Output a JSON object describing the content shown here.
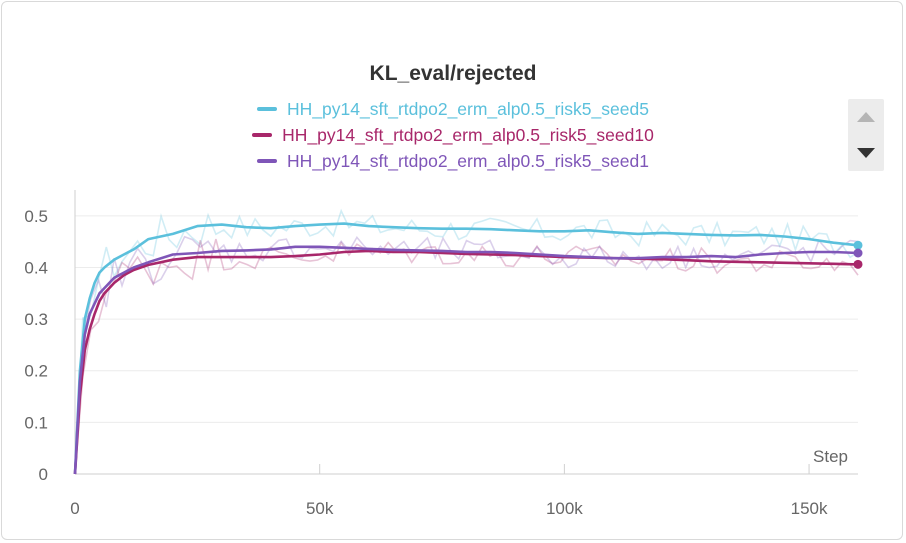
{
  "chart_data": {
    "type": "line",
    "title": "KL_eval/rejected",
    "xlabel": "Step",
    "ylabel": "",
    "xlim": [
      0,
      160000
    ],
    "ylim": [
      0,
      0.55
    ],
    "x_ticks": [
      0,
      50000,
      100000,
      150000
    ],
    "x_tick_labels": [
      "0",
      "50k",
      "100k",
      "150k"
    ],
    "y_ticks": [
      0,
      0.1,
      0.2,
      0.3,
      0.4,
      0.5
    ],
    "y_tick_labels": [
      "0",
      "0.1",
      "0.2",
      "0.3",
      "0.4",
      "0.5"
    ],
    "legend_position": "top-center",
    "grid": true,
    "series": [
      {
        "name": "HH_py14_sft_rtdpo2_erm_alp0.5_risk5_seed5",
        "color": "#5bc0dc",
        "x": [
          0,
          1000,
          2000,
          3000,
          4000,
          5000,
          6000,
          8000,
          10000,
          12000,
          15000,
          20000,
          25000,
          30000,
          35000,
          40000,
          45000,
          50000,
          55000,
          60000,
          65000,
          70000,
          75000,
          80000,
          85000,
          90000,
          95000,
          100000,
          105000,
          110000,
          115000,
          120000,
          125000,
          130000,
          135000,
          140000,
          145000,
          150000,
          155000,
          160000
        ],
        "values": [
          0,
          0.2,
          0.3,
          0.34,
          0.37,
          0.39,
          0.4,
          0.415,
          0.425,
          0.435,
          0.455,
          0.465,
          0.48,
          0.483,
          0.478,
          0.476,
          0.48,
          0.483,
          0.485,
          0.48,
          0.478,
          0.476,
          0.475,
          0.475,
          0.474,
          0.472,
          0.47,
          0.47,
          0.472,
          0.468,
          0.465,
          0.467,
          0.465,
          0.463,
          0.462,
          0.463,
          0.46,
          0.455,
          0.448,
          0.443
        ]
      },
      {
        "name": "HH_py14_sft_rtdpo2_erm_alp0.5_risk5_seed10",
        "color": "#a8276a",
        "x": [
          0,
          1000,
          2000,
          3000,
          4000,
          5000,
          6000,
          8000,
          10000,
          12000,
          15000,
          20000,
          25000,
          30000,
          35000,
          40000,
          45000,
          50000,
          55000,
          60000,
          65000,
          70000,
          75000,
          80000,
          85000,
          90000,
          95000,
          100000,
          105000,
          110000,
          115000,
          120000,
          125000,
          130000,
          135000,
          140000,
          145000,
          150000,
          155000,
          160000
        ],
        "values": [
          0,
          0.15,
          0.24,
          0.28,
          0.31,
          0.335,
          0.35,
          0.37,
          0.385,
          0.395,
          0.405,
          0.415,
          0.42,
          0.42,
          0.42,
          0.42,
          0.422,
          0.425,
          0.43,
          0.432,
          0.43,
          0.43,
          0.428,
          0.426,
          0.425,
          0.424,
          0.422,
          0.42,
          0.419,
          0.418,
          0.417,
          0.416,
          0.414,
          0.412,
          0.411,
          0.41,
          0.409,
          0.408,
          0.407,
          0.406
        ]
      },
      {
        "name": "HH_py14_sft_rtdpo2_erm_alp0.5_risk5_seed1",
        "color": "#7f56b8",
        "x": [
          0,
          1000,
          2000,
          3000,
          4000,
          5000,
          6000,
          8000,
          10000,
          12000,
          15000,
          20000,
          25000,
          30000,
          35000,
          40000,
          45000,
          50000,
          55000,
          60000,
          65000,
          70000,
          75000,
          80000,
          85000,
          90000,
          95000,
          100000,
          105000,
          110000,
          115000,
          120000,
          125000,
          130000,
          135000,
          140000,
          145000,
          150000,
          155000,
          160000
        ],
        "values": [
          0,
          0.18,
          0.27,
          0.31,
          0.33,
          0.35,
          0.36,
          0.38,
          0.39,
          0.4,
          0.41,
          0.425,
          0.428,
          0.432,
          0.433,
          0.435,
          0.44,
          0.44,
          0.438,
          0.436,
          0.434,
          0.433,
          0.432,
          0.43,
          0.43,
          0.428,
          0.425,
          0.422,
          0.42,
          0.418,
          0.418,
          0.42,
          0.42,
          0.422,
          0.42,
          0.425,
          0.428,
          0.43,
          0.43,
          0.428
        ]
      }
    ]
  },
  "ui": {
    "scroll_up_icon": "triangle-up-icon",
    "scroll_down_icon": "triangle-down-icon"
  }
}
